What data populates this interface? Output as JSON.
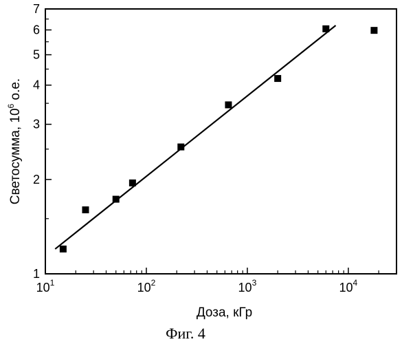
{
  "chart_data": {
    "type": "scatter",
    "xlabel": "Доза, кГр",
    "ylabel_main": "Светосумма, 10",
    "ylabel_exp": "6",
    "ylabel_tail": " о.е.",
    "x_scale": "log",
    "y_scale": "log",
    "xlim": [
      10,
      30000
    ],
    "ylim": [
      1,
      7
    ],
    "x_ticks": [
      {
        "value": 10,
        "base": "10",
        "exp": "1"
      },
      {
        "value": 100,
        "base": "10",
        "exp": "2"
      },
      {
        "value": 1000,
        "base": "10",
        "exp": "3"
      },
      {
        "value": 10000,
        "base": "10",
        "exp": "4"
      }
    ],
    "y_ticks": [
      {
        "value": 1,
        "label": "1"
      },
      {
        "value": 2,
        "label": "2"
      },
      {
        "value": 3,
        "label": "3"
      },
      {
        "value": 4,
        "label": "4"
      },
      {
        "value": 5,
        "label": "5"
      },
      {
        "value": 6,
        "label": "6"
      },
      {
        "value": 7,
        "label": "7"
      }
    ],
    "grid": false,
    "legend": "none",
    "series": [
      {
        "marker": "square",
        "color": "#000000",
        "x": [
          15,
          25,
          50,
          73,
          220,
          650,
          2000,
          6000,
          18000
        ],
        "y": [
          1.2,
          1.6,
          1.73,
          1.95,
          2.54,
          3.46,
          4.2,
          6.05,
          5.98
        ]
      }
    ],
    "fit_line": {
      "color": "#000000",
      "x": [
        12.5,
        7500
      ],
      "y": [
        1.2,
        6.2
      ]
    }
  },
  "caption": "Фиг. 4"
}
